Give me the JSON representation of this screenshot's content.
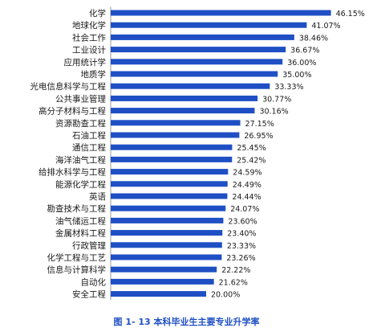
{
  "chart_data": {
    "type": "bar",
    "orientation": "horizontal",
    "categories": [
      "化学",
      "地球化学",
      "社会工作",
      "工业设计",
      "应用统计学",
      "地质学",
      "光电信息科学与工程",
      "公共事业管理",
      "高分子材料与工程",
      "资源勘查工程",
      "石油工程",
      "通信工程",
      "海洋油气工程",
      "给排水科学与工程",
      "能源化学工程",
      "英语",
      "勘查技术与工程",
      "油气储运工程",
      "金属材料工程",
      "行政管理",
      "化学工程与工艺",
      "信息与计算科学",
      "自动化",
      "安全工程"
    ],
    "values": [
      46.15,
      41.07,
      38.46,
      36.67,
      36.0,
      35.0,
      33.33,
      30.77,
      30.16,
      27.15,
      26.95,
      25.45,
      25.42,
      24.59,
      24.49,
      24.44,
      24.07,
      23.6,
      23.4,
      23.33,
      23.26,
      22.22,
      21.62,
      20.0
    ],
    "value_labels": [
      "46.15%",
      "41.07%",
      "38.46%",
      "36.67%",
      "36.00%",
      "35.00%",
      "33.33%",
      "30.77%",
      "30.16%",
      "27.15%",
      "26.95%",
      "25.45%",
      "25.42%",
      "24.59%",
      "24.49%",
      "24.44%",
      "24.07%",
      "23.60%",
      "23.40%",
      "23.33%",
      "23.26%",
      "22.22%",
      "21.62%",
      "20.00%"
    ],
    "title": "图 1- 13 本科毕业生主要专业升学率",
    "xlabel": "",
    "ylabel": "",
    "xlim": [
      0,
      50
    ],
    "grid": false,
    "bar_color": "#1f4fc4"
  }
}
